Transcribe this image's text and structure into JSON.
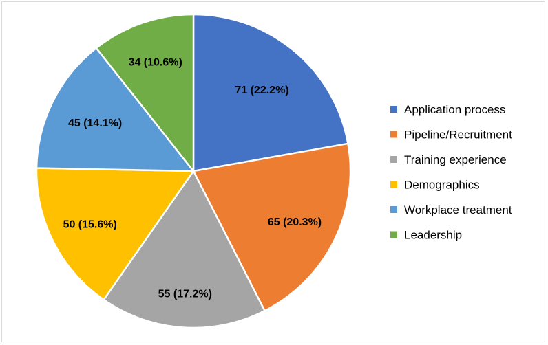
{
  "chart_data": {
    "type": "pie",
    "title": "",
    "legend_position": "right",
    "slices": [
      {
        "name": "Application process",
        "value": 71,
        "label": "71 (22.2%)",
        "color": "#4472C4"
      },
      {
        "name": "Pipeline/Recruitment",
        "value": 65,
        "label": "65 (20.3%)",
        "color": "#ED7D31"
      },
      {
        "name": "Training experience",
        "value": 55,
        "label": "55  (17.2%)",
        "color": "#A5A5A5"
      },
      {
        "name": "Demographics",
        "value": 50,
        "label": "50  (15.6%)",
        "color": "#FFC000"
      },
      {
        "name": "Workplace treatment",
        "value": 45,
        "label": "45 (14.1%)",
        "color": "#5B9BD5"
      },
      {
        "name": "Leadership",
        "value": 34,
        "label": "34 (10.6%)",
        "color": "#70AD47"
      }
    ]
  }
}
